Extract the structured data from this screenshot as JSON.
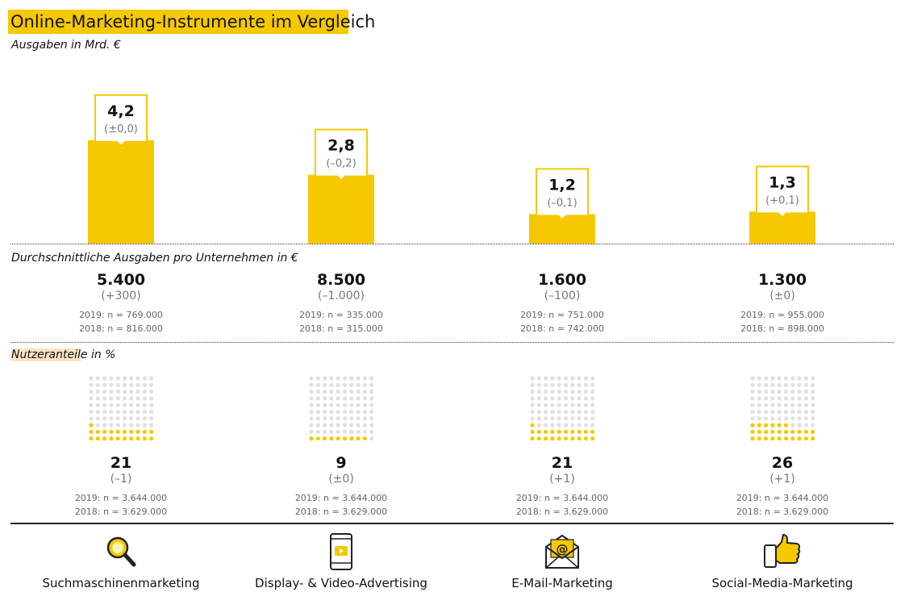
{
  "title": "Online-Marketing-Instrumente im Vergleich",
  "subtitle": "Ausgaben in Mrd. €",
  "section2_label": "Durchschnittliche Ausgaben pro Unternehmen in €",
  "section3_label_hl": "Nutzeranteil",
  "section3_label_rest": "e in %",
  "colors": {
    "accent": "#f5c800",
    "grey_dot": "#e0e0e0",
    "label_bg": "#fde3c4"
  },
  "chart_data": {
    "type": "bar",
    "categories": [
      "Suchmaschinenmarketing",
      "Display- & Video-Advertising",
      "E-Mail-Marketing",
      "Social-Media-Marketing"
    ],
    "values": [
      4.2,
      2.8,
      1.2,
      1.3
    ],
    "value_labels": [
      "4,2",
      "2,8",
      "1,2",
      "1,3"
    ],
    "change_labels": [
      "(±0,0)",
      "(–0,2)",
      "(–0,1)",
      "(+0,1)"
    ],
    "title": "Online-Marketing-Instrumente im Vergleich",
    "ylabel": "Ausgaben in Mrd. €"
  },
  "avg_spend": [
    {
      "value": "5.400",
      "change": "(+300)",
      "n2019": "2019: n = 769.000",
      "n2018": "2018: n = 816.000"
    },
    {
      "value": "8.500",
      "change": "(–1.000)",
      "n2019": "2019: n = 335.000",
      "n2018": "2018: n = 315.000"
    },
    {
      "value": "1.600",
      "change": "(–100)",
      "n2019": "2019: n = 751.000",
      "n2018": "2018: n = 742.000"
    },
    {
      "value": "1.300",
      "change": "(±0)",
      "n2019": "2019: n = 955.000",
      "n2018": "2018: n = 898.000"
    }
  ],
  "user_share": [
    {
      "value": "21",
      "percent": 21,
      "change": "(–1)",
      "n2019": "2019: n = 3.644.000",
      "n2018": "2018: n = 3.629.000"
    },
    {
      "value": "9",
      "percent": 9,
      "change": "(±0)",
      "n2019": "2019: n = 3.644.000",
      "n2018": "2018: n = 3.629.000"
    },
    {
      "value": "21",
      "percent": 21,
      "change": "(+1)",
      "n2019": "2019: n = 3.644.000",
      "n2018": "2018: n = 3.629.000"
    },
    {
      "value": "26",
      "percent": 26,
      "change": "(+1)",
      "n2019": "2019: n = 3.644.000",
      "n2018": "2018: n = 3.629.000"
    }
  ],
  "instruments": [
    {
      "label": "Suchmaschinenmarketing",
      "icon": "magnifier-icon"
    },
    {
      "label": "Display- & Video-Advertising",
      "icon": "smartphone-video-icon"
    },
    {
      "label": "E-Mail-Marketing",
      "icon": "email-envelope-icon"
    },
    {
      "label": "Social-Media-Marketing",
      "icon": "thumbs-up-icon"
    }
  ]
}
